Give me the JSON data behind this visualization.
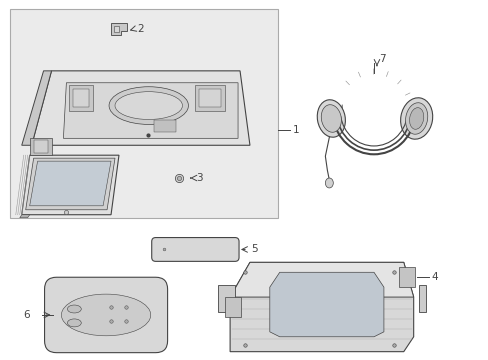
{
  "bg_color": "#f0f0f0",
  "white": "#ffffff",
  "lc": "#444444",
  "fill_light": "#e8e8e8",
  "fill_mid": "#d4d4d4",
  "fill_dark": "#b8b8b8",
  "box_bg": "#ebebeb"
}
